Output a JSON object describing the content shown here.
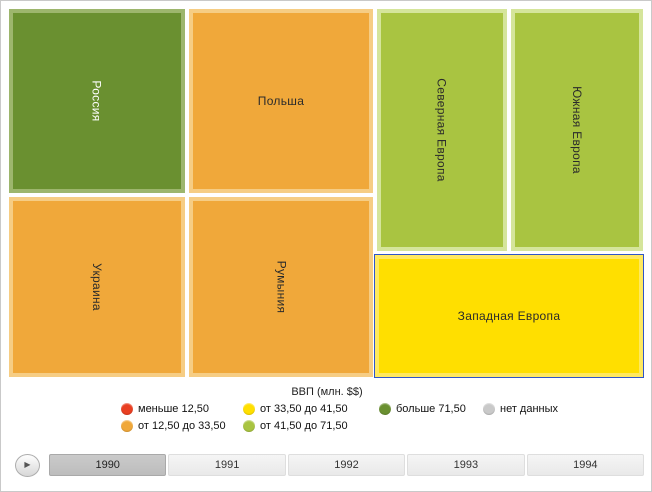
{
  "chart_data": {
    "type": "treemap",
    "title": "ВВП (млн. $$)",
    "legend": {
      "title": "ВВП (млн. $$)",
      "position": "bottom",
      "buckets": [
        {
          "label": "меньше 12,50",
          "color": "#e93f22"
        },
        {
          "label": "от 12,50 до 33,50",
          "color": "#f0a83a"
        },
        {
          "label": "от 33,50 до 41,50",
          "color": "#ffdf00"
        },
        {
          "label": "от 41,50 до 71,50",
          "color": "#a9c441"
        },
        {
          "label": "больше 71,50",
          "color": "#6a9030"
        },
        {
          "label": "нет данных",
          "color": "#c9c9c9"
        }
      ],
      "thresholds": [
        12.5,
        33.5,
        41.5,
        71.5
      ]
    },
    "nodes": [
      {
        "name": "Россия",
        "bucket": "больше 71,50",
        "color": "#6a9030",
        "selected": false
      },
      {
        "name": "Польша",
        "bucket": "от 12,50 до 33,50",
        "color": "#f0a83a",
        "selected": false
      },
      {
        "name": "Украина",
        "bucket": "от 12,50 до 33,50",
        "color": "#f0a83a",
        "selected": false
      },
      {
        "name": "Румыния",
        "bucket": "от 12,50 до 33,50",
        "color": "#f0a83a",
        "selected": false
      },
      {
        "name": "Северная Европа",
        "bucket": "от 41,50 до 71,50",
        "color": "#a9c441",
        "selected": false
      },
      {
        "name": "Южная Европа",
        "bucket": "от 41,50 до 71,50",
        "color": "#a9c441",
        "selected": false
      },
      {
        "name": "Западная Европа",
        "bucket": "от 33,50 до 41,50",
        "color": "#ffdf00",
        "selected": true
      }
    ],
    "layout_hint": "all seven tiles have approximately equal area",
    "timeline_years": [
      "1990",
      "1991",
      "1992",
      "1993",
      "1994"
    ],
    "selected_year": "1990"
  },
  "treemap": {
    "cells": [
      {
        "label": "Россия",
        "fill": "#6a9030",
        "border": "#9db66d",
        "text_color": "#ffffff"
      },
      {
        "label": "Польша",
        "fill": "#f0a83a",
        "border": "#f6cd84",
        "text_color": "#2b2b2b"
      },
      {
        "label": "Украина",
        "fill": "#f0a83a",
        "border": "#f6cd84",
        "text_color": "#2b2b2b"
      },
      {
        "label": "Румыния",
        "fill": "#f0a83a",
        "border": "#f6cd84",
        "text_color": "#2b2b2b"
      },
      {
        "label": "Северная Европа",
        "fill": "#a9c441",
        "border": "#d5e59b",
        "text_color": "#2b2b2b"
      },
      {
        "label": "Южная Европа",
        "fill": "#a9c441",
        "border": "#d5e59b",
        "text_color": "#2b2b2b"
      },
      {
        "label": "Западная Европа",
        "fill": "#ffdf00",
        "border": "#ffe95f",
        "text_color": "#2b2b2b",
        "selection_color": "#2f55c8"
      }
    ]
  },
  "legend": {
    "title": "ВВП (млн. $$)",
    "rows": [
      [
        {
          "label": "меньше 12,50",
          "color": "#e93f22"
        },
        {
          "label": "от 33,50 до 41,50",
          "color": "#ffdf00"
        },
        {
          "label": "больше 71,50",
          "color": "#6a9030"
        },
        {
          "label": "нет данных",
          "color": "#c9c9c9"
        }
      ],
      [
        {
          "label": "от 12,50 до 33,50",
          "color": "#f0a83a"
        },
        {
          "label": "от 41,50 до 71,50",
          "color": "#a9c441"
        }
      ]
    ]
  },
  "timeline": {
    "play_icon": "▶",
    "years": [
      "1990",
      "1991",
      "1992",
      "1993",
      "1994"
    ],
    "selected": "1990"
  }
}
